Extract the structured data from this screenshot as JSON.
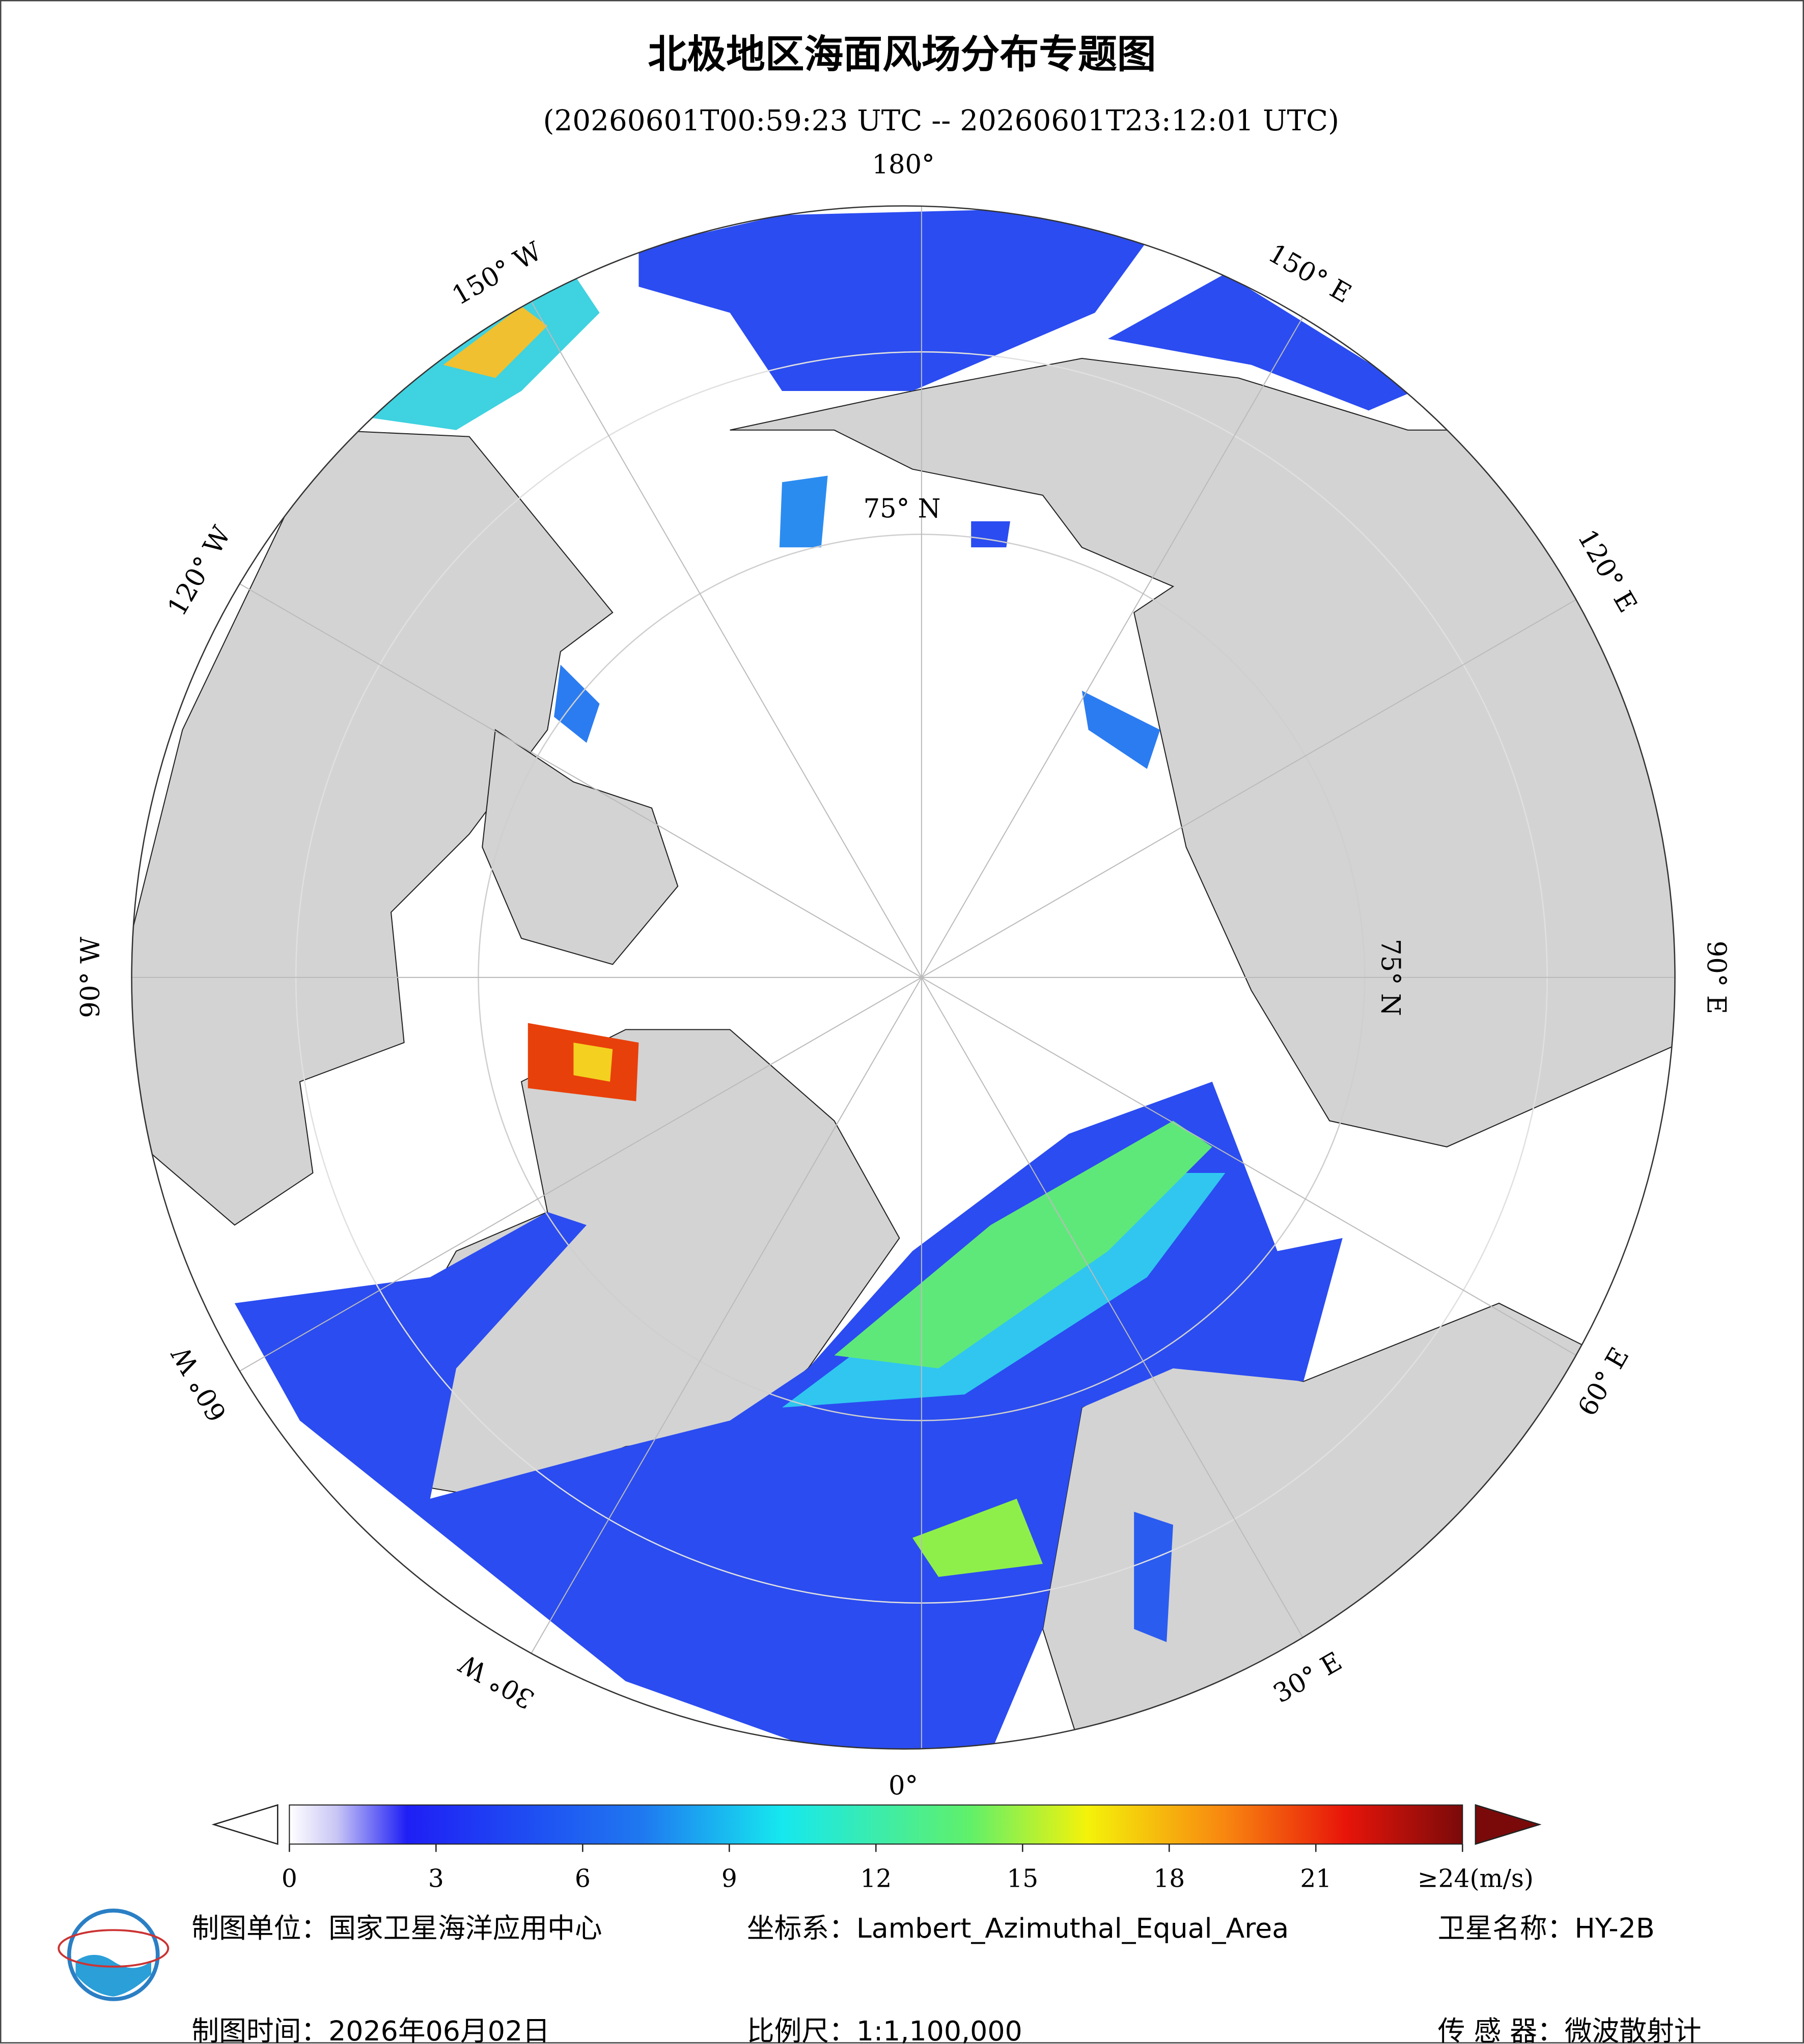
{
  "map_data": {
    "title": "北极地区海面风场分布专题图",
    "subtitle": "(20260601T00:59:23 UTC -- 20260601T23:12:01 UTC)",
    "longitude_labels": [
      {
        "lon": 180,
        "label": "180°"
      },
      {
        "lon": 150,
        "label": "150° E"
      },
      {
        "lon": 120,
        "label": "120° E"
      },
      {
        "lon": 90,
        "label": "90° E"
      },
      {
        "lon": 60,
        "label": "60° E"
      },
      {
        "lon": 30,
        "label": "30° E"
      },
      {
        "lon": 0,
        "label": "0°"
      },
      {
        "lon": -30,
        "label": "30° W"
      },
      {
        "lon": -60,
        "label": "60° W"
      },
      {
        "lon": -90,
        "label": "90° W"
      },
      {
        "lon": -120,
        "label": "120° W"
      },
      {
        "lon": -150,
        "label": "150° W"
      }
    ],
    "latitude_labels": [
      {
        "lat": 75,
        "lon": 180,
        "label": "75° N"
      },
      {
        "lat": 75,
        "lon": 90,
        "label": "75° N"
      }
    ],
    "colorbar": {
      "lim": [
        0,
        24
      ],
      "ticks": [
        0,
        3,
        6,
        9,
        12,
        15,
        18,
        21,
        {
          "value": 24,
          "label": "≥24(m/s)"
        }
      ]
    },
    "footer": [
      [
        "制图单位：国家卫星海洋应用中心",
        "坐标系：Lambert_Azimuthal_Equal_Area",
        "卫星名称：HY-2B"
      ],
      [
        "制图时间：2026年06月02日",
        "比例尺：1:1,100,000",
        "传 感 器：微波散射计"
      ]
    ]
  }
}
